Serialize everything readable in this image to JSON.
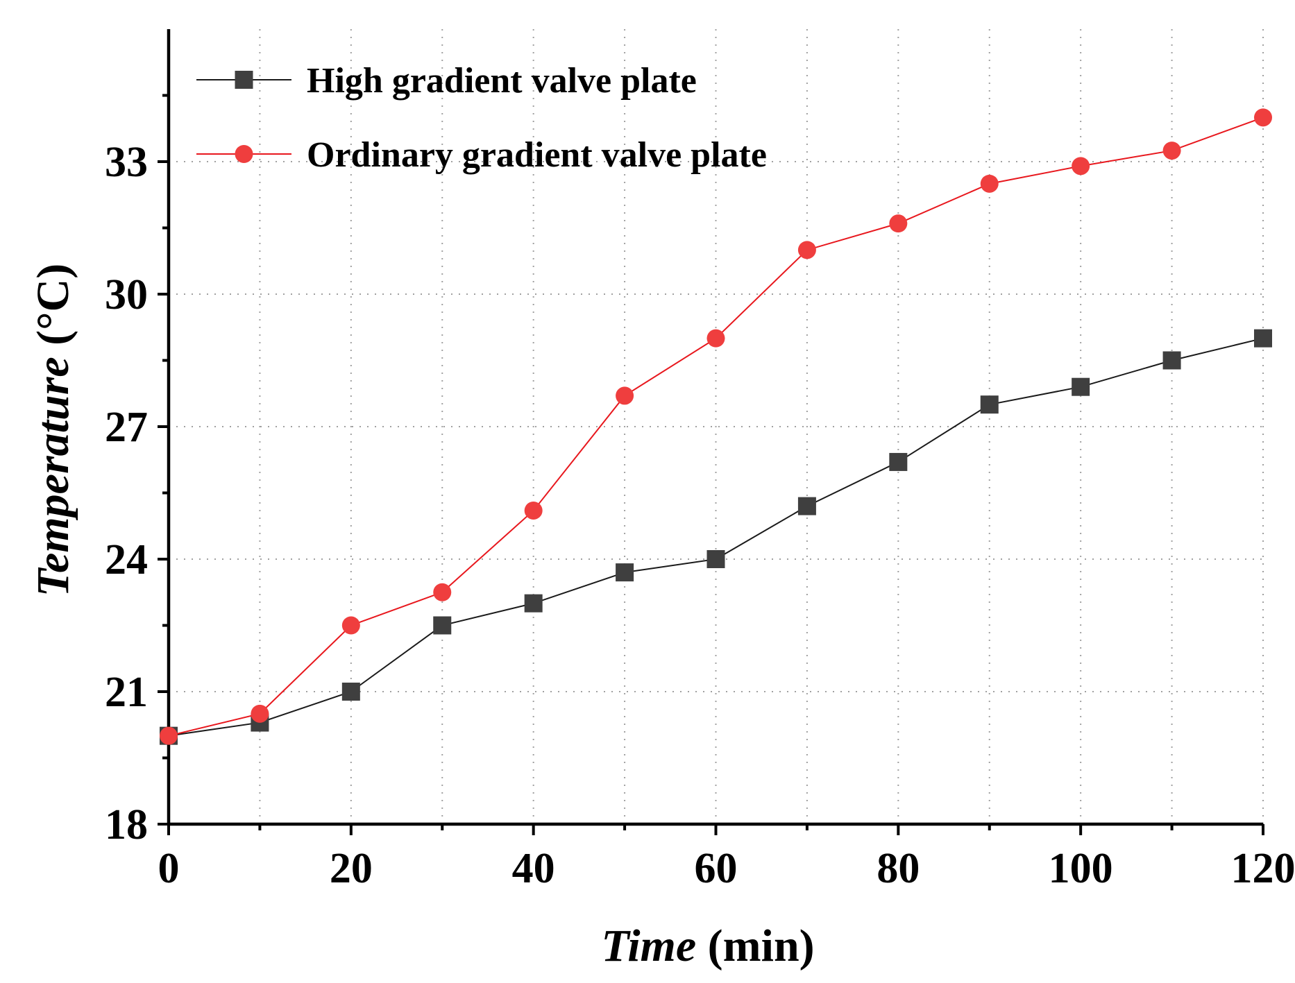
{
  "chart_data": {
    "type": "line",
    "title": "",
    "xlabel_italic": "Time",
    "xlabel_unit": " (min)",
    "ylabel_italic": "Temperature",
    "ylabel_unit": " (°C)",
    "xlim": [
      0,
      120
    ],
    "ylim": [
      18,
      36
    ],
    "xticks": [
      0,
      20,
      40,
      60,
      80,
      100,
      120
    ],
    "yticks": [
      18,
      21,
      24,
      27,
      30,
      33
    ],
    "grid": true,
    "legend_position": "top-left",
    "x": [
      0,
      10,
      20,
      30,
      40,
      50,
      60,
      70,
      80,
      90,
      100,
      110,
      120
    ],
    "series": [
      {
        "name": "High gradient valve plate",
        "color": "#3f3f3f",
        "line_color": "#1a1a1a",
        "marker": "square",
        "values": [
          20.0,
          20.3,
          21.0,
          22.5,
          23.0,
          23.7,
          24.0,
          25.2,
          26.2,
          27.5,
          27.9,
          28.5,
          29.0
        ]
      },
      {
        "name": "Ordinary gradient valve plate",
        "color": "#ef3e3e",
        "line_color": "#e8171d",
        "marker": "circle",
        "values": [
          20.0,
          20.5,
          22.5,
          23.25,
          25.1,
          27.7,
          29.0,
          31.0,
          31.6,
          32.5,
          32.9,
          33.25,
          34.0
        ]
      }
    ]
  }
}
